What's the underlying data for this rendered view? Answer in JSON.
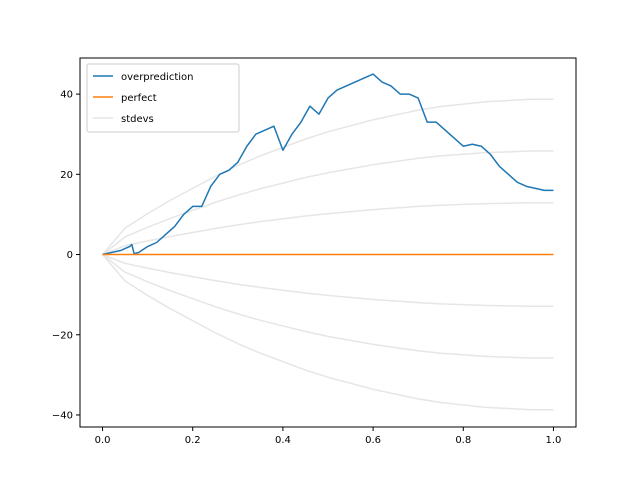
{
  "chart_data": {
    "type": "line",
    "title": "",
    "xlabel": "",
    "ylabel": "",
    "xlim": [
      -0.05,
      1.05
    ],
    "ylim": [
      -43,
      49
    ],
    "grid": false,
    "legend_position": "top-left",
    "xticks": [
      0.0,
      0.2,
      0.4,
      0.6,
      0.8,
      1.0
    ],
    "xtick_labels": [
      "0.0",
      "0.2",
      "0.4",
      "0.6",
      "0.8",
      "1.0"
    ],
    "yticks": [
      -40,
      -20,
      0,
      20,
      40
    ],
    "ytick_labels": [
      "−40",
      "−20",
      "0",
      "20",
      "40"
    ],
    "series": [
      {
        "name": "overprediction",
        "color": "#1f77b4",
        "x": [
          0.0,
          0.02,
          0.04,
          0.06,
          0.065,
          0.07,
          0.08,
          0.1,
          0.12,
          0.14,
          0.16,
          0.18,
          0.2,
          0.22,
          0.24,
          0.26,
          0.28,
          0.3,
          0.32,
          0.34,
          0.36,
          0.38,
          0.4,
          0.42,
          0.44,
          0.46,
          0.48,
          0.5,
          0.52,
          0.54,
          0.56,
          0.58,
          0.6,
          0.62,
          0.64,
          0.66,
          0.68,
          0.7,
          0.72,
          0.74,
          0.76,
          0.78,
          0.8,
          0.82,
          0.84,
          0.86,
          0.88,
          0.9,
          0.92,
          0.94,
          0.96,
          0.98,
          1.0
        ],
        "y": [
          0,
          0.5,
          1,
          2,
          2.5,
          0.2,
          0.5,
          2,
          3,
          5,
          7,
          10,
          12,
          12,
          17,
          20,
          21,
          23,
          27,
          30,
          31,
          32,
          26,
          30,
          33,
          37,
          35,
          39,
          41,
          42,
          43,
          44,
          45,
          43,
          42,
          40,
          40,
          39,
          33,
          33,
          31,
          29,
          27,
          27.5,
          27,
          25,
          22,
          20,
          18,
          17,
          16.5,
          16,
          16
        ]
      },
      {
        "name": "perfect",
        "color": "#ff7f0e",
        "x": [
          0.0,
          1.0
        ],
        "y": [
          0,
          0
        ]
      }
    ],
    "stdev_bands": {
      "name": "stdevs",
      "color": "#e6e6e6",
      "x": [
        0.0,
        0.05,
        0.1,
        0.15,
        0.2,
        0.25,
        0.3,
        0.35,
        0.4,
        0.45,
        0.5,
        0.55,
        0.6,
        0.65,
        0.7,
        0.75,
        0.8,
        0.85,
        0.9,
        0.95,
        1.0
      ],
      "unit_curve": [
        0,
        2.2,
        3.4,
        4.5,
        5.5,
        6.5,
        7.4,
        8.2,
        8.9,
        9.6,
        10.2,
        10.7,
        11.2,
        11.6,
        12.0,
        12.3,
        12.5,
        12.7,
        12.8,
        12.9,
        12.9
      ],
      "multipliers": [
        1,
        2,
        3,
        -1,
        -2,
        -3
      ]
    }
  }
}
